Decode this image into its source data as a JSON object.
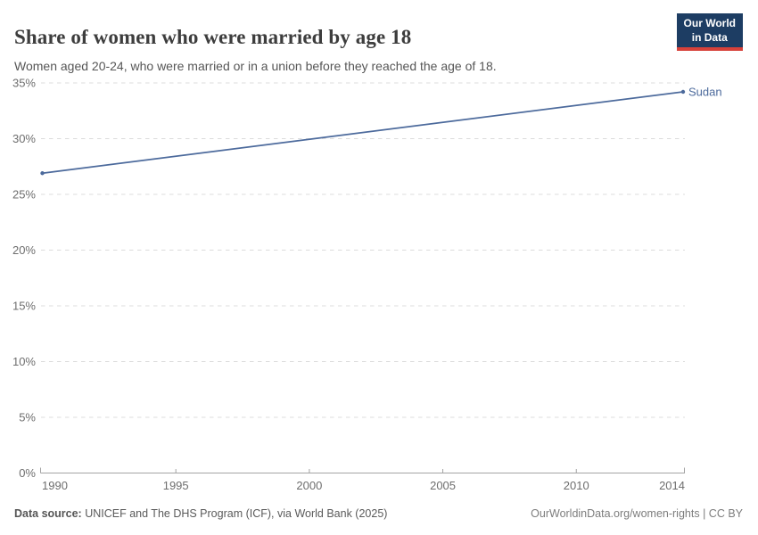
{
  "header": {
    "title": "Share of women who were married by age 18",
    "subtitle": "Women aged 20-24, who were married or in a union before they reached the age of 18."
  },
  "logo": {
    "line1": "Our World",
    "line2": "in Data",
    "bg_color": "#1d3d63",
    "bar_color": "#d7413a"
  },
  "chart_data": {
    "type": "line",
    "title": "Share of women who were married by age 18",
    "series": [
      {
        "name": "Sudan",
        "color": "#4c6a9c",
        "points": [
          {
            "year": 1990,
            "value": 26.9
          },
          {
            "year": 2014,
            "value": 34.2
          }
        ]
      }
    ],
    "xlabel": "",
    "ylabel": "",
    "xlim": [
      1990,
      2014
    ],
    "ylim": [
      0,
      35
    ],
    "xticks": [
      1990,
      1995,
      2000,
      2005,
      2010,
      2014
    ],
    "yticks": [
      0,
      5,
      10,
      15,
      20,
      25,
      30,
      35
    ],
    "ytick_suffix": "%",
    "grid": "horizontal-dashed",
    "legend_position": "end-of-line-label",
    "grid_color": "#dcdcdc",
    "axis_color": "#a3a3a3",
    "tick_label_color": "#6e6e6e"
  },
  "footer": {
    "datasource_label": "Data source:",
    "datasource_text": " UNICEF and The DHS Program (ICF), via World Bank (2025)",
    "link": "OurWorldinData.org/women-rights",
    "separator": " | ",
    "license": "CC BY"
  }
}
